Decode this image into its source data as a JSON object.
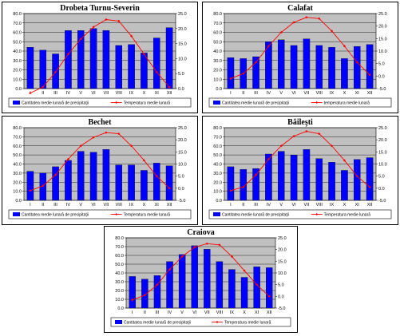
{
  "chart_data": [
    {
      "type": "bar+line",
      "title": "Drobeta Turnu-Severin",
      "categories": [
        "I",
        "II",
        "III",
        "IV",
        "V",
        "VI",
        "VII",
        "VIII",
        "IX",
        "X",
        "XI",
        "XII"
      ],
      "series": [
        {
          "name": "Cantitatea medie lunară de precipitaţii",
          "type": "bar",
          "axis": "left",
          "values": [
            44,
            41,
            37,
            62,
            62,
            64,
            62,
            46,
            47,
            38,
            54,
            65
          ]
        },
        {
          "name": "Temperatura medie lunară",
          "type": "line",
          "axis": "right",
          "values": [
            -1.5,
            0.5,
            5.5,
            11.5,
            16.5,
            20.5,
            23,
            22.5,
            17.5,
            11.5,
            5.5,
            0.5
          ]
        }
      ],
      "ylim_left": [
        0,
        80
      ],
      "yticks_left": [
        "0.0",
        "10.0",
        "20.0",
        "30.0",
        "40.0",
        "50.0",
        "60.0",
        "70.0",
        "80.0"
      ],
      "ylim_right": [
        0,
        25
      ],
      "yticks_right": [
        "0.0",
        "5.0",
        "10.0",
        "15.0",
        "20.0",
        "25.0"
      ],
      "legend_position": "bottom"
    },
    {
      "type": "bar+line",
      "title": "Calafat",
      "categories": [
        "I",
        "II",
        "III",
        "IV",
        "V",
        "VI",
        "VII",
        "VIII",
        "IX",
        "X",
        "XI",
        "XII"
      ],
      "series": [
        {
          "name": "Cantitatea medie lunară de precipitaţii",
          "type": "bar",
          "axis": "left",
          "values": [
            33,
            32,
            34,
            50,
            52,
            46,
            53,
            46,
            44,
            32,
            45,
            47
          ]
        },
        {
          "name": "temperatura medie lunară",
          "type": "line",
          "axis": "right",
          "values": [
            -1,
            1,
            5.5,
            12,
            17.5,
            21.5,
            23.5,
            23,
            18,
            12,
            5.5,
            0.5
          ]
        }
      ],
      "ylim_left": [
        0,
        80
      ],
      "yticks_left": [
        "0.0",
        "10.0",
        "20.0",
        "30.0",
        "40.0",
        "50.0",
        "60.0",
        "70.0",
        "80.0"
      ],
      "ylim_right": [
        -5,
        25
      ],
      "yticks_right": [
        "-5.0",
        "0.0",
        "5.0",
        "10.0",
        "15.0",
        "20.0",
        "25.0"
      ],
      "legend_position": "bottom"
    },
    {
      "type": "bar+line",
      "title": "Bechet",
      "categories": [
        "I",
        "II",
        "III",
        "IV",
        "V",
        "VI",
        "VII",
        "VIII",
        "IX",
        "X",
        "XI",
        "XII"
      ],
      "series": [
        {
          "name": "Cantitatea medie lunară de precipitaţii",
          "type": "bar",
          "axis": "left",
          "values": [
            32,
            30,
            37,
            44,
            54,
            53,
            56,
            39,
            39,
            33,
            41,
            38
          ]
        },
        {
          "name": "Temperatura medie lunară",
          "type": "line",
          "axis": "right",
          "values": [
            -1,
            1,
            5.5,
            12,
            17.5,
            21,
            23,
            22.5,
            17.5,
            11.5,
            5,
            0
          ]
        }
      ],
      "ylim_left": [
        0,
        80
      ],
      "yticks_left": [
        "0.0",
        "10.0",
        "20.0",
        "30.0",
        "40.0",
        "50.0",
        "60.0",
        "70.0",
        "80.0"
      ],
      "ylim_right": [
        -5,
        25
      ],
      "yticks_right": [
        "-5.0",
        "0.0",
        "5.0",
        "10.0",
        "15.0",
        "20.0",
        "25.0"
      ],
      "legend_position": "bottom"
    },
    {
      "type": "bar+line",
      "title": "Băileşti",
      "categories": [
        "I",
        "II",
        "III",
        "IV",
        "V",
        "VI",
        "VII",
        "VIII",
        "IX",
        "X",
        "XI",
        "XII"
      ],
      "series": [
        {
          "name": "Cantitatea medie lunară de precipitaţii",
          "type": "bar",
          "axis": "left",
          "values": [
            37,
            34,
            35,
            51,
            54,
            50,
            56,
            46,
            42,
            33,
            45,
            47
          ]
        },
        {
          "name": "Temperatura medie lunară",
          "type": "line",
          "axis": "right",
          "values": [
            -1,
            0.5,
            5.5,
            12,
            17.5,
            21.5,
            23.5,
            22.5,
            17.5,
            11.5,
            5,
            0.5
          ]
        }
      ],
      "ylim_left": [
        0,
        80
      ],
      "yticks_left": [
        "0.0",
        "10.0",
        "20.0",
        "30.0",
        "40.0",
        "50.0",
        "60.0",
        "70.0",
        "80.0"
      ],
      "ylim_right": [
        -5,
        25
      ],
      "yticks_right": [
        "-5.0",
        "0.0",
        "5.0",
        "10.0",
        "15.0",
        "20.0",
        "25.0"
      ],
      "legend_position": "bottom"
    },
    {
      "type": "bar+line",
      "title": "Craiova",
      "categories": [
        "I",
        "II",
        "III",
        "IV",
        "V",
        "VI",
        "VII",
        "VIII",
        "IX",
        "X",
        "XI",
        "XII"
      ],
      "series": [
        {
          "name": "Cantitatea medie lunară de precipitaţii",
          "type": "bar",
          "axis": "left",
          "values": [
            36,
            33,
            37,
            53,
            61,
            71,
            67,
            53,
            44,
            35,
            47,
            46
          ]
        },
        {
          "name": "Temperatura medie lunară",
          "type": "line",
          "axis": "right",
          "values": [
            -1.5,
            0.5,
            5,
            11.5,
            17,
            21,
            22.5,
            22,
            17,
            11,
            5,
            0
          ]
        }
      ],
      "ylim_left": [
        0,
        80
      ],
      "yticks_left": [
        "0.0",
        "10.0",
        "20.0",
        "30.0",
        "40.0",
        "50.0",
        "60.0",
        "70.0",
        "80.0"
      ],
      "ylim_right": [
        -5,
        25
      ],
      "yticks_right": [
        "-5.0",
        "0.0",
        "5.0",
        "10.0",
        "15.0",
        "20.0",
        "25.0"
      ],
      "legend_position": "bottom"
    }
  ],
  "colors": {
    "bar": "#0000ff",
    "line": "#ff0000",
    "plot_bg": "#c0c0c0",
    "gridline": "#000000"
  }
}
